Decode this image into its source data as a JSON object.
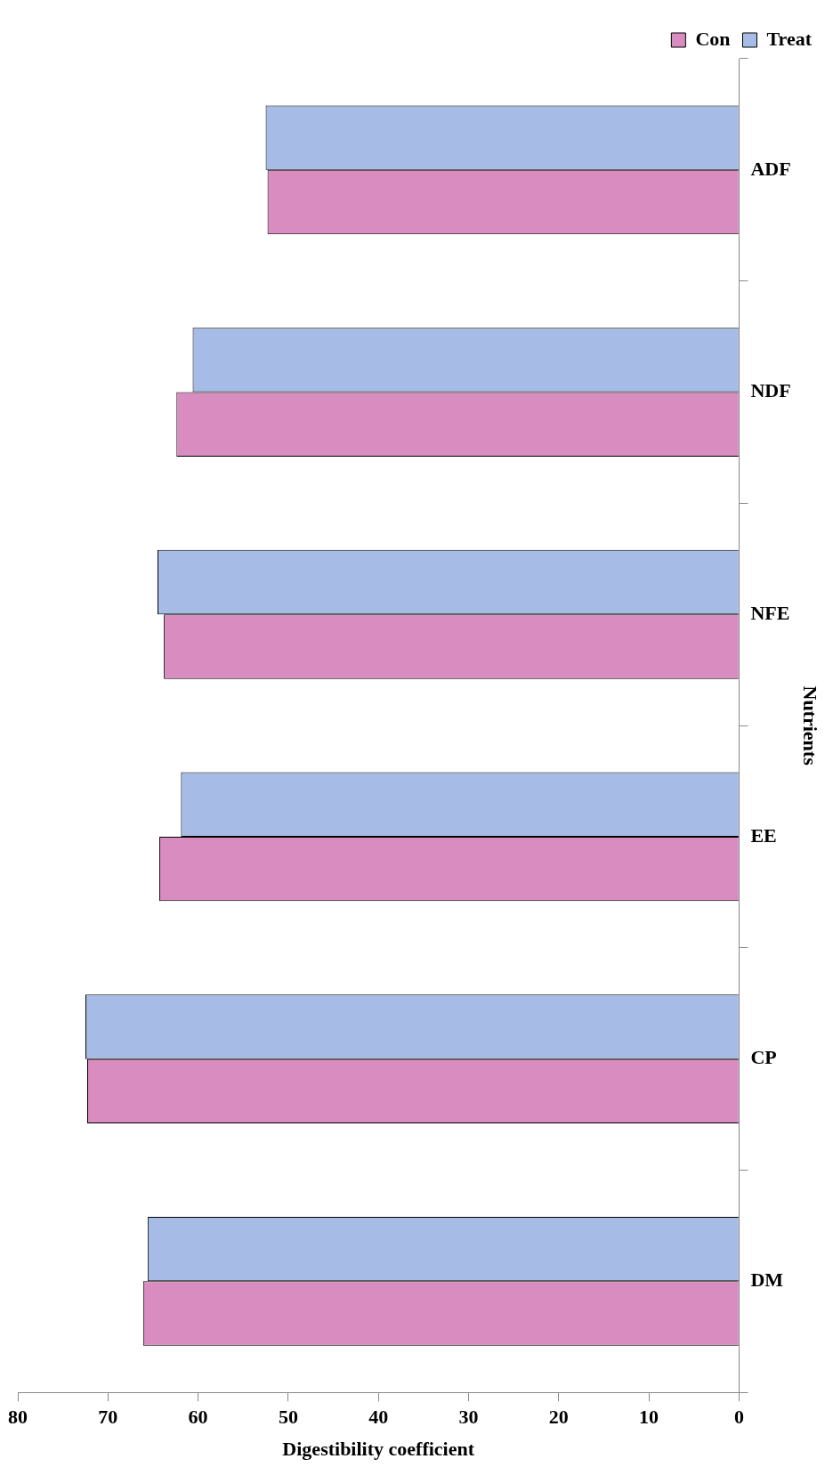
{
  "chart_data": {
    "type": "bar",
    "orientation": "horizontal",
    "xlabel": "Digestibility coefficient",
    "ylabel": "Nutrients",
    "categories": [
      "ADF",
      "NDF",
      "NFE",
      "EE",
      "CP",
      "DM"
    ],
    "series": [
      {
        "name": "Treat",
        "color": "#a6bce6",
        "values": [
          52.5,
          60.6,
          64.5,
          61.9,
          72.5,
          65.6
        ]
      },
      {
        "name": "Con",
        "color": "#d98cc0",
        "values": [
          52.3,
          62.4,
          63.8,
          64.3,
          72.3,
          66.1
        ]
      }
    ],
    "xlim": [
      80,
      0
    ],
    "xticks": [
      0,
      10,
      20,
      30,
      40,
      50,
      60,
      70,
      80
    ],
    "grid": false,
    "legend": "top right"
  }
}
